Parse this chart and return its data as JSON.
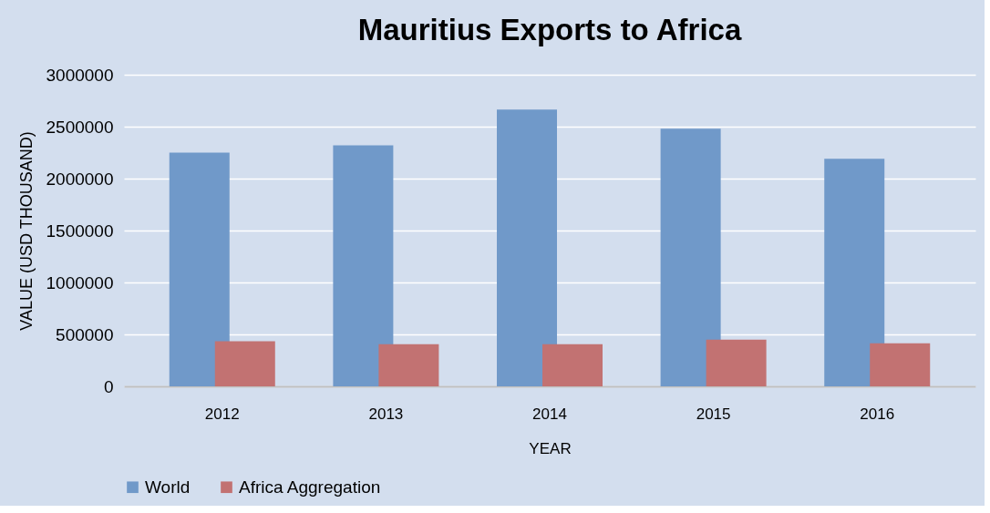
{
  "chart_data": {
    "type": "bar",
    "title": "Mauritius Exports to Africa",
    "xlabel": "YEAR",
    "ylabel": "VALUE (USD THOUSAND)",
    "categories": [
      "2012",
      "2013",
      "2014",
      "2015",
      "2016"
    ],
    "series": [
      {
        "name": "World",
        "color": "#7099c9",
        "values": [
          2250000,
          2320000,
          2665000,
          2480000,
          2190000
        ]
      },
      {
        "name": "Africa Aggregation",
        "color": "#c27272",
        "values": [
          435000,
          405000,
          405000,
          450000,
          415000
        ]
      }
    ],
    "ylim": [
      0,
      3000000
    ],
    "yticks": [
      0,
      500000,
      1000000,
      1500000,
      2000000,
      2500000,
      3000000
    ],
    "grid": "y",
    "legend": "bottom"
  }
}
